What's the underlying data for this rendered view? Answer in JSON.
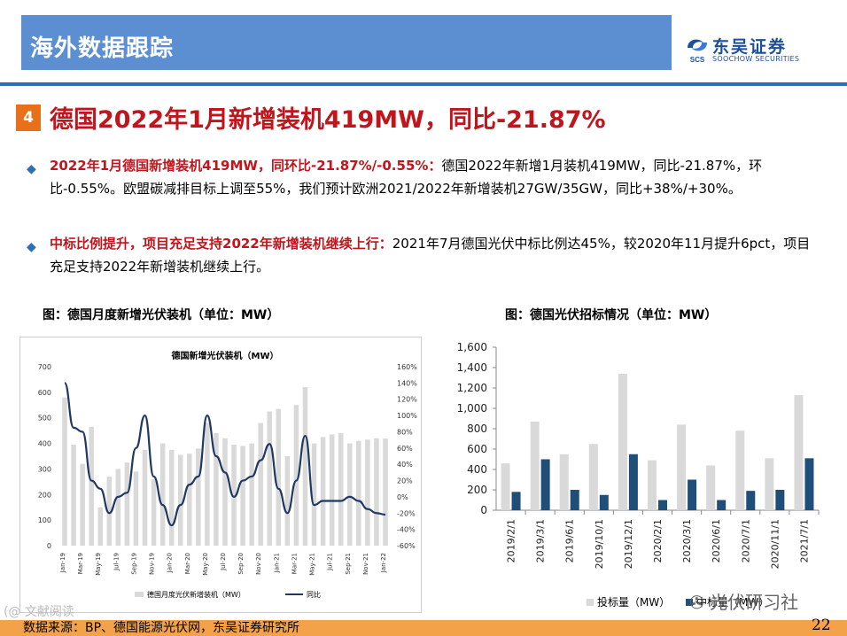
{
  "header": {
    "title": "海外数据跟踪",
    "logo_cn": "东吴证券",
    "logo_en": "SOOCHOW SECURITIES",
    "logo_mark": "SCS"
  },
  "headline": {
    "number": "4",
    "text": "德国2022年1月新增装机419MW，同比-21.87%"
  },
  "bullets": [
    {
      "bold": "2022年1月德国新增装机419MW，同环比-21.87%/-0.55%：",
      "rest": "德国2022年新增1月装机419MW，同比-21.87%，环比-0.55%。欧盟碳减排目标上调至55%，我们预计欧洲2021/2022年新增装机27GW/35GW，同比+38%/+30%。"
    },
    {
      "bold": "中标比例提升，项目充足支持2022年新增装机继续上行：",
      "rest": "2021年7月德国光伏中标比例达45%，较2020年11月提升6pct，项目充足支持2022年新增装机继续上行。"
    }
  ],
  "figures": {
    "left_title": "图：德国月度新增光伏装机（单位：MW）",
    "right_title": "图：德国光伏招标情况（单位：MW）"
  },
  "chart_data": [
    {
      "type": "bar+line",
      "title": "德国新增光伏装机（MW）",
      "categories": [
        "Jan-19",
        "Feb-19",
        "Mar-19",
        "Apr-19",
        "May-19",
        "Jun-19",
        "Jul-19",
        "Aug-19",
        "Sep-19",
        "Oct-19",
        "Nov-19",
        "Dec-19",
        "Jan-20",
        "Feb-20",
        "Mar-20",
        "Apr-20",
        "May-20",
        "Jun-20",
        "Jul-20",
        "Aug-20",
        "Sep-20",
        "Oct-20",
        "Nov-20",
        "Dec-20",
        "Jan-21",
        "Feb-21",
        "Mar-21",
        "Apr-21",
        "May-21",
        "Jun-21",
        "Jul-21",
        "Aug-21",
        "Sep-21",
        "Oct-21",
        "Nov-21",
        "Dec-21",
        "Jan-22"
      ],
      "x_tick_labels": [
        "Jan-19",
        "Mar-19",
        "May-19",
        "Jul-19",
        "Sep-19",
        "Nov-19",
        "Jan-20",
        "Mar-20",
        "May-20",
        "Jul-20",
        "Sep-20",
        "Nov-20",
        "Jan-21",
        "Mar-21",
        "May-21",
        "Jul-21",
        "Sep-21",
        "Nov-21",
        "Jan-22"
      ],
      "series": [
        {
          "name": "德国月度光伏新增装机（MW）",
          "axis": "left",
          "type": "bar",
          "values": [
            580,
            395,
            320,
            465,
            150,
            270,
            300,
            325,
            290,
            375,
            260,
            400,
            375,
            355,
            360,
            380,
            480,
            440,
            420,
            395,
            390,
            400,
            480,
            525,
            535,
            350,
            550,
            620,
            400,
            425,
            435,
            440,
            400,
            410,
            415,
            420,
            419
          ]
        },
        {
          "name": "同比",
          "axis": "right",
          "type": "line",
          "unit": "%",
          "values": [
            140,
            85,
            80,
            20,
            10,
            -20,
            0,
            5,
            60,
            100,
            25,
            -10,
            -35,
            -10,
            15,
            25,
            100,
            50,
            30,
            0,
            20,
            25,
            45,
            65,
            10,
            -20,
            20,
            75,
            -10,
            -5,
            -5,
            -5,
            0,
            -5,
            -15,
            -20,
            -21.87
          ]
        }
      ],
      "y_left": {
        "min": 0,
        "max": 700,
        "ticks": [
          "0",
          "100",
          "200",
          "300",
          "400",
          "500",
          "600",
          "700"
        ]
      },
      "y_right": {
        "min": -60,
        "max": 160,
        "ticks": [
          "-60%",
          "-40%",
          "-20%",
          "0%",
          "20%",
          "40%",
          "60%",
          "80%",
          "100%",
          "120%",
          "140%",
          "160%"
        ]
      },
      "legend": [
        "德国月度光伏新增装机（MW）",
        "同比"
      ]
    },
    {
      "type": "bar",
      "categories": [
        "2019/2/1",
        "2019/3/1",
        "2019/6/1",
        "2019/10/1",
        "2019/12/1",
        "2020/2/1",
        "2020/3/1",
        "2020/6/1",
        "2020/7/1",
        "2020/11/1",
        "2021/7/1"
      ],
      "series": [
        {
          "name": "投标量（MW）",
          "color": "#d9d9d9",
          "values": [
            460,
            870,
            550,
            650,
            1340,
            490,
            840,
            440,
            780,
            510,
            1130
          ]
        },
        {
          "name": "中标量（MW）",
          "color": "#1f4e79",
          "values": [
            180,
            500,
            200,
            150,
            550,
            100,
            300,
            100,
            190,
            200,
            510
          ]
        }
      ],
      "y_ticks": [
        "0",
        "200",
        "400",
        "600",
        "800",
        "1,000",
        "1,200",
        "1,400",
        "1,600"
      ],
      "ylim": [
        0,
        1600
      ],
      "legend": [
        "投标量（MW）",
        "中标量（MW）"
      ]
    }
  ],
  "footer": {
    "source": "数据来源：BP、德国能源光伏网，东吴证券研究所",
    "page": "22",
    "watermark": "光伏研习社",
    "watermark_left": "(@ 文献阅读"
  }
}
